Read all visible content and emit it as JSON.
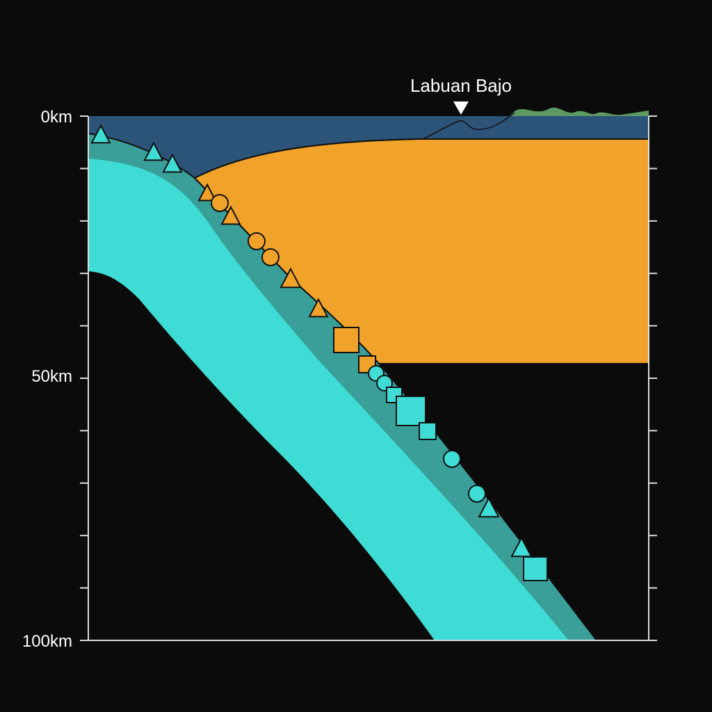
{
  "place_label": "Labuan Bajo",
  "y_axis": {
    "tick_labels": [
      "0km",
      "50km",
      "100km"
    ],
    "range_km": [
      0,
      100
    ],
    "minor_tick_step_km": 10
  },
  "colors": {
    "background": "#0b0b0b",
    "sea": "#2c5378",
    "land": "#5c9a64",
    "overriding_crust": "#f0a22a",
    "slab_upper_layer": "#3a9f98",
    "slab": "#3edcd4",
    "marker_orange": "#f0a22a",
    "marker_cyan": "#3edcd4"
  },
  "marker_legend_shapes": [
    "triangle",
    "circle",
    "square"
  ]
}
